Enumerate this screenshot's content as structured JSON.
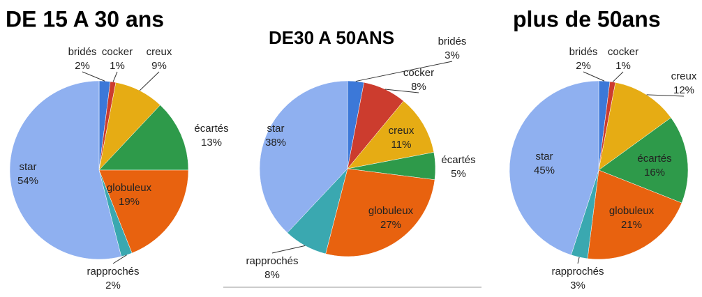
{
  "chart_data": [
    {
      "type": "pie",
      "title": "DE 15 A 30 ans",
      "categories": [
        "bridés",
        "cocker",
        "creux",
        "écartés",
        "globuleux",
        "rapprochés",
        "star"
      ],
      "values": [
        2,
        1,
        9,
        13,
        19,
        2,
        54
      ],
      "value_labels": [
        "2%",
        "1%",
        "9%",
        "13%",
        "19%",
        "2%",
        "54%"
      ],
      "colors": [
        "#3c78d8",
        "#cc3c2e",
        "#e6ac14",
        "#2e9a4a",
        "#e8620f",
        "#3aa8b0",
        "#8fb0f0"
      ]
    },
    {
      "type": "pie",
      "title": "DE30 A 50ANS",
      "categories": [
        "bridés",
        "cocker",
        "creux",
        "écartés",
        "globuleux",
        "rapprochés",
        "star"
      ],
      "values": [
        3,
        8,
        11,
        5,
        27,
        8,
        38
      ],
      "value_labels": [
        "3%",
        "8%",
        "11%",
        "5%",
        "27%",
        "8%",
        "38%"
      ],
      "colors": [
        "#3c78d8",
        "#cc3c2e",
        "#e6ac14",
        "#2e9a4a",
        "#e8620f",
        "#3aa8b0",
        "#8fb0f0"
      ]
    },
    {
      "type": "pie",
      "title": "plus de 50ans",
      "categories": [
        "bridés",
        "cocker",
        "creux",
        "écartés",
        "globuleux",
        "rapprochés",
        "star"
      ],
      "values": [
        2,
        1,
        12,
        16,
        21,
        3,
        45
      ],
      "value_labels": [
        "2%",
        "1%",
        "12%",
        "16%",
        "21%",
        "3%",
        "45%"
      ],
      "colors": [
        "#3c78d8",
        "#cc3c2e",
        "#e6ac14",
        "#2e9a4a",
        "#e8620f",
        "#3aa8b0",
        "#8fb0f0"
      ]
    }
  ]
}
